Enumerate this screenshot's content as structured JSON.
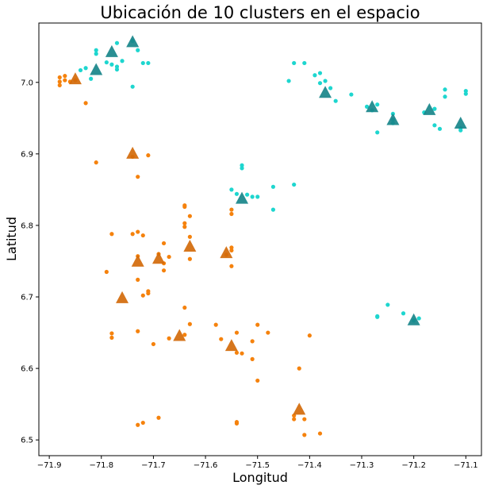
{
  "chart_data": {
    "type": "scatter",
    "title": "Ubicación de 10 clusters en el espacio",
    "xlabel": "Longitud",
    "ylabel": "Latitud",
    "xlim": [
      -71.92,
      -71.07
    ],
    "ylim": [
      6.478,
      7.083
    ],
    "xticks": [
      -71.9,
      -71.8,
      -71.7,
      -71.6,
      -71.5,
      -71.4,
      -71.3,
      -71.2,
      -71.1
    ],
    "xtick_labels": [
      "−71.9",
      "−71.8",
      "−71.7",
      "−71.6",
      "−71.5",
      "−71.4",
      "−71.3",
      "−71.2",
      "−71.1"
    ],
    "yticks": [
      6.5,
      6.6,
      6.7,
      6.8,
      6.9,
      7.0
    ],
    "ytick_labels": [
      "6.5",
      "6.6",
      "6.7",
      "6.8",
      "6.9",
      "7.0"
    ],
    "grid": false,
    "legend": "none",
    "colors": {
      "orange_points": "#f5820d",
      "orange_centroids": "#d26a0a",
      "cyan_points": "#1ed6cf",
      "cyan_centroids": "#18868a"
    },
    "series": [
      {
        "color": "orange",
        "marker": "circle",
        "points": [
          [
            -71.88,
            7.007
          ],
          [
            -71.88,
            7.001
          ],
          [
            -71.88,
            6.996
          ],
          [
            -71.87,
            7.009
          ],
          [
            -71.87,
            7.003
          ],
          [
            -71.86,
            7.001
          ],
          [
            -71.85,
            7.003
          ],
          [
            -71.83,
            6.971
          ],
          [
            -71.81,
            6.888
          ],
          [
            -71.74,
            6.896
          ],
          [
            -71.73,
            6.868
          ],
          [
            -71.71,
            6.898
          ],
          [
            -71.78,
            6.788
          ],
          [
            -71.74,
            6.788
          ],
          [
            -71.73,
            6.791
          ],
          [
            -71.72,
            6.786
          ],
          [
            -71.73,
            6.757
          ],
          [
            -71.79,
            6.735
          ],
          [
            -71.73,
            6.724
          ],
          [
            -71.71,
            6.705
          ],
          [
            -71.71,
            6.708
          ],
          [
            -71.72,
            6.702
          ],
          [
            -71.73,
            6.652
          ],
          [
            -71.78,
            6.649
          ],
          [
            -71.78,
            6.643
          ],
          [
            -71.7,
            6.634
          ],
          [
            -71.69,
            6.76
          ],
          [
            -71.68,
            6.747
          ],
          [
            -71.68,
            6.737
          ],
          [
            -71.68,
            6.775
          ],
          [
            -71.67,
            6.756
          ],
          [
            -71.64,
            6.828
          ],
          [
            -71.64,
            6.826
          ],
          [
            -71.64,
            6.803
          ],
          [
            -71.64,
            6.798
          ],
          [
            -71.63,
            6.813
          ],
          [
            -71.63,
            6.784
          ],
          [
            -71.63,
            6.753
          ],
          [
            -71.64,
            6.685
          ],
          [
            -71.63,
            6.662
          ],
          [
            -71.64,
            6.647
          ],
          [
            -71.67,
            6.642
          ],
          [
            -71.55,
            6.822
          ],
          [
            -71.55,
            6.816
          ],
          [
            -71.55,
            6.769
          ],
          [
            -71.55,
            6.765
          ],
          [
            -71.56,
            6.759
          ],
          [
            -71.55,
            6.743
          ],
          [
            -71.58,
            6.661
          ],
          [
            -71.57,
            6.641
          ],
          [
            -71.54,
            6.65
          ],
          [
            -71.54,
            6.622
          ],
          [
            -71.53,
            6.621
          ],
          [
            -71.51,
            6.638
          ],
          [
            -71.51,
            6.613
          ],
          [
            -71.5,
            6.661
          ],
          [
            -71.5,
            6.583
          ],
          [
            -71.48,
            6.65
          ],
          [
            -71.43,
            6.534
          ],
          [
            -71.43,
            6.529
          ],
          [
            -71.42,
            6.6
          ],
          [
            -71.41,
            6.529
          ],
          [
            -71.4,
            6.646
          ],
          [
            -71.41,
            6.507
          ],
          [
            -71.38,
            6.509
          ],
          [
            -71.73,
            6.521
          ],
          [
            -71.72,
            6.524
          ],
          [
            -71.69,
            6.531
          ],
          [
            -71.54,
            6.525
          ],
          [
            -71.54,
            6.523
          ]
        ]
      },
      {
        "color": "cyan",
        "marker": "circle",
        "points": [
          [
            -71.84,
            7.017
          ],
          [
            -71.83,
            7.02
          ],
          [
            -71.82,
            7.005
          ],
          [
            -71.81,
            7.04
          ],
          [
            -71.81,
            7.045
          ],
          [
            -71.79,
            7.028
          ],
          [
            -71.78,
            7.025
          ],
          [
            -71.77,
            7.022
          ],
          [
            -71.77,
            7.018
          ],
          [
            -71.76,
            7.03
          ],
          [
            -71.77,
            7.055
          ],
          [
            -71.74,
            7.058
          ],
          [
            -71.73,
            7.045
          ],
          [
            -71.72,
            7.027
          ],
          [
            -71.71,
            7.027
          ],
          [
            -71.74,
            6.994
          ],
          [
            -71.44,
            7.002
          ],
          [
            -71.43,
            7.027
          ],
          [
            -71.41,
            7.027
          ],
          [
            -71.39,
            7.01
          ],
          [
            -71.38,
            7.013
          ],
          [
            -71.38,
            6.999
          ],
          [
            -71.37,
            7.002
          ],
          [
            -71.36,
            6.992
          ],
          [
            -71.35,
            6.974
          ],
          [
            -71.32,
            6.983
          ],
          [
            -71.29,
            6.966
          ],
          [
            -71.28,
            6.961
          ],
          [
            -71.27,
            6.969
          ],
          [
            -71.27,
            6.93
          ],
          [
            -71.24,
            6.956
          ],
          [
            -71.24,
            6.948
          ],
          [
            -71.24,
            6.943
          ],
          [
            -71.18,
            6.958
          ],
          [
            -71.16,
            6.963
          ],
          [
            -71.16,
            6.94
          ],
          [
            -71.15,
            6.935
          ],
          [
            -71.14,
            6.98
          ],
          [
            -71.14,
            6.99
          ],
          [
            -71.11,
            6.936
          ],
          [
            -71.11,
            6.933
          ],
          [
            -71.1,
            6.988
          ],
          [
            -71.1,
            6.984
          ],
          [
            -71.53,
            6.88
          ],
          [
            -71.53,
            6.884
          ],
          [
            -71.55,
            6.85
          ],
          [
            -71.54,
            6.844
          ],
          [
            -71.52,
            6.843
          ],
          [
            -71.51,
            6.84
          ],
          [
            -71.5,
            6.84
          ],
          [
            -71.47,
            6.854
          ],
          [
            -71.47,
            6.822
          ],
          [
            -71.43,
            6.857
          ],
          [
            -71.27,
            6.673
          ],
          [
            -71.27,
            6.672
          ],
          [
            -71.25,
            6.689
          ],
          [
            -71.22,
            6.677
          ],
          [
            -71.2,
            6.667
          ],
          [
            -71.19,
            6.67
          ]
        ]
      },
      {
        "color": "orange",
        "marker": "triangle",
        "points": [
          [
            -71.85,
            7.004
          ],
          [
            -71.74,
            6.9
          ],
          [
            -71.73,
            6.749
          ],
          [
            -71.76,
            6.698
          ],
          [
            -71.69,
            6.753
          ],
          [
            -71.63,
            6.77
          ],
          [
            -71.65,
            6.645
          ],
          [
            -71.56,
            6.761
          ],
          [
            -71.55,
            6.631
          ],
          [
            -71.42,
            6.542
          ]
        ]
      },
      {
        "color": "cyan",
        "marker": "triangle",
        "points": [
          [
            -71.81,
            7.017
          ],
          [
            -71.78,
            7.042
          ],
          [
            -71.74,
            7.056
          ],
          [
            -71.37,
            6.985
          ],
          [
            -71.28,
            6.965
          ],
          [
            -71.24,
            6.947
          ],
          [
            -71.17,
            6.961
          ],
          [
            -71.11,
            6.942
          ],
          [
            -71.53,
            6.837
          ],
          [
            -71.2,
            6.667
          ]
        ]
      }
    ]
  }
}
